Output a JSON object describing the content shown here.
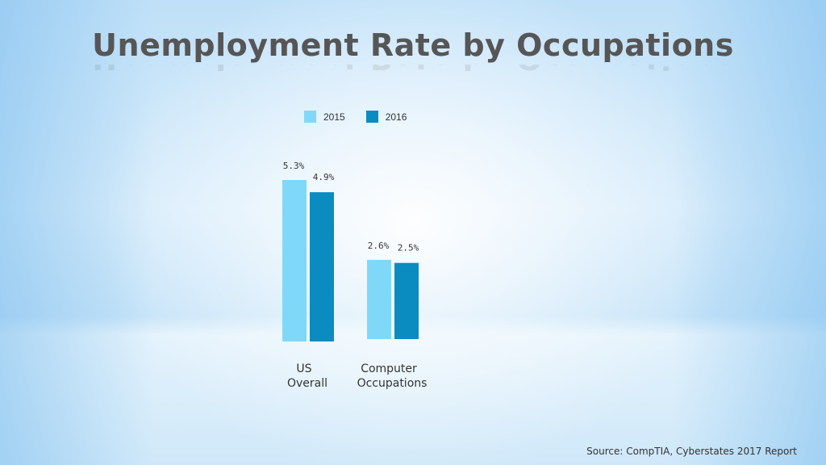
{
  "chart_data": {
    "type": "bar",
    "title": "Unemployment Rate by Occupations",
    "categories": [
      [
        "US",
        "Overall"
      ],
      [
        "Computer",
        "Occupations"
      ]
    ],
    "series": [
      {
        "name": "2015",
        "values": [
          5.3,
          2.6
        ],
        "labels": [
          "5.3%",
          "2.6%"
        ],
        "color": "#80d8f8"
      },
      {
        "name": "2016",
        "values": [
          4.9,
          2.5
        ],
        "labels": [
          "4.9%",
          "2.5%"
        ],
        "color": "#0a8cc0"
      }
    ],
    "xlabel": "",
    "ylabel": "",
    "ylim": [
      0,
      5.3
    ],
    "grid": false,
    "legend_position": "top"
  },
  "source": "Source: CompTIA, Cyberstates 2017 Report"
}
